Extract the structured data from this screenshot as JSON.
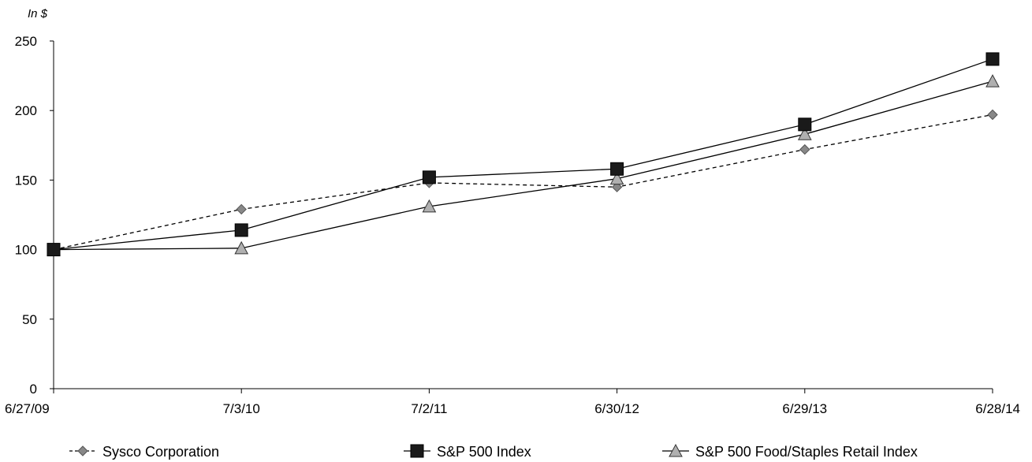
{
  "chart_data": {
    "type": "line",
    "unit_label": "In $",
    "title": "",
    "xlabel": "",
    "ylabel": "In $",
    "categories": [
      "6/27/09",
      "7/3/10",
      "7/2/11",
      "6/30/12",
      "6/29/13",
      "6/28/14"
    ],
    "ylim": [
      0,
      250
    ],
    "yticks": [
      "0",
      "50",
      "100",
      "150",
      "200",
      "250"
    ],
    "grid": false,
    "legend_position": "bottom",
    "series": [
      {
        "name": "Sysco Corporation",
        "values": [
          100,
          129,
          148,
          145,
          172,
          197
        ],
        "marker": "diamond",
        "line_style": "dashed",
        "color": "#888888",
        "line_color": "#000000"
      },
      {
        "name": "S&P 500 Index",
        "values": [
          100,
          114,
          152,
          158,
          190,
          237
        ],
        "marker": "square",
        "line_style": "solid",
        "color": "#1a1a1a",
        "line_color": "#000000"
      },
      {
        "name": "S&P 500 Food/Staples Retail Index",
        "values": [
          100,
          101,
          131,
          151,
          183,
          221
        ],
        "marker": "triangle",
        "line_style": "solid",
        "color": "#b0b0b0",
        "line_color": "#000000"
      }
    ]
  }
}
